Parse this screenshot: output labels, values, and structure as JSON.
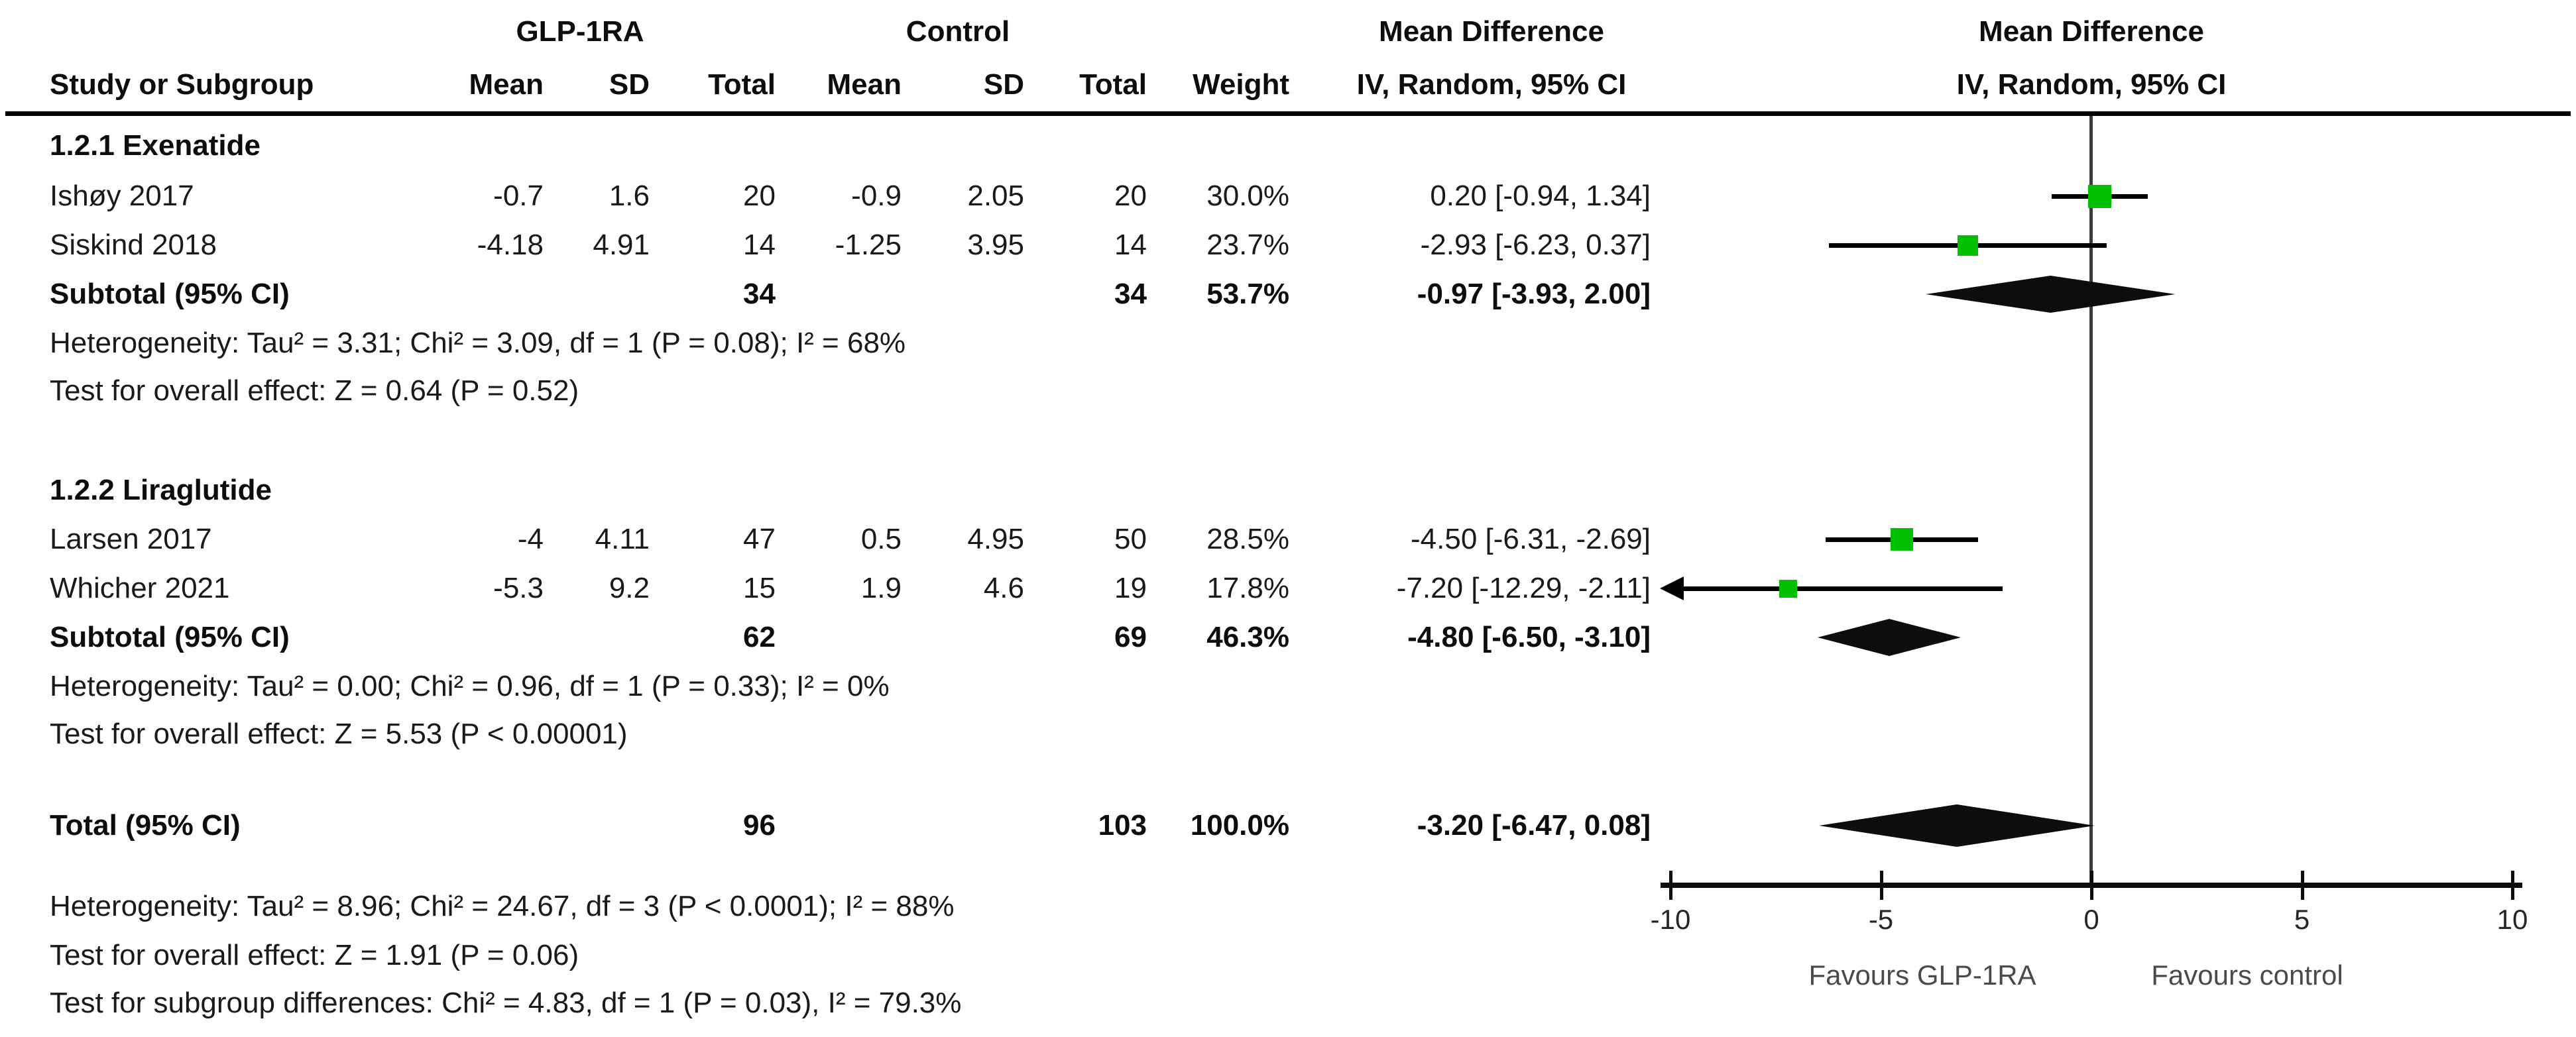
{
  "figure": {
    "group_headers": {
      "glp1ra": "GLP-1RA",
      "control": "Control",
      "md_left": "Mean Difference",
      "md_right": "Mean Difference"
    },
    "column_headers": {
      "study": "Study or Subgroup",
      "mean1": "Mean",
      "sd1": "SD",
      "total1": "Total",
      "mean2": "Mean",
      "sd2": "SD",
      "total2": "Total",
      "weight": "Weight",
      "ci_left": "IV, Random, 95% CI",
      "ci_right": "IV, Random, 95% CI"
    }
  },
  "subgroups": [
    {
      "label": "1.2.1 Exenatide",
      "studies": [
        {
          "name": "Ishøy 2017",
          "mean1": "-0.7",
          "sd1": "1.6",
          "n1": "20",
          "mean2": "-0.9",
          "sd2": "2.05",
          "n2": "20",
          "weight": "30.0%",
          "md_ci": "0.20 [-0.94, 1.34]"
        },
        {
          "name": "Siskind 2018",
          "mean1": "-4.18",
          "sd1": "4.91",
          "n1": "14",
          "mean2": "-1.25",
          "sd2": "3.95",
          "n2": "14",
          "weight": "23.7%",
          "md_ci": "-2.93 [-6.23, 0.37]"
        }
      ],
      "subtotal": {
        "label": "Subtotal (95% CI)",
        "n1": "34",
        "n2": "34",
        "weight": "53.7%",
        "md_ci": "-0.97 [-3.93, 2.00]"
      },
      "heterogeneity": "Heterogeneity: Tau² = 3.31; Chi² = 3.09, df = 1 (P = 0.08); I² = 68%",
      "overall_effect": "Test for overall effect: Z = 0.64 (P = 0.52)"
    },
    {
      "label": "1.2.2 Liraglutide",
      "studies": [
        {
          "name": "Larsen 2017",
          "mean1": "-4",
          "sd1": "4.11",
          "n1": "47",
          "mean2": "0.5",
          "sd2": "4.95",
          "n2": "50",
          "weight": "28.5%",
          "md_ci": "-4.50 [-6.31, -2.69]"
        },
        {
          "name": "Whicher 2021",
          "mean1": "-5.3",
          "sd1": "9.2",
          "n1": "15",
          "mean2": "1.9",
          "sd2": "4.6",
          "n2": "19",
          "weight": "17.8%",
          "md_ci": "-7.20 [-12.29, -2.11]"
        }
      ],
      "subtotal": {
        "label": "Subtotal (95% CI)",
        "n1": "62",
        "n2": "69",
        "weight": "46.3%",
        "md_ci": "-4.80 [-6.50, -3.10]"
      },
      "heterogeneity": "Heterogeneity: Tau² = 0.00; Chi² = 0.96, df = 1 (P = 0.33); I² = 0%",
      "overall_effect": "Test for overall effect: Z = 5.53 (P < 0.00001)"
    }
  ],
  "total": {
    "label": "Total (95% CI)",
    "n1": "96",
    "n2": "103",
    "weight": "100.0%",
    "md_ci": "-3.20 [-6.47, 0.08]",
    "heterogeneity": "Heterogeneity: Tau² = 8.96; Chi² = 24.67, df = 3 (P < 0.0001); I² = 88%",
    "overall_effect": "Test for overall effect: Z = 1.91 (P = 0.06)",
    "subgroup_diff": "Test for subgroup differences: Chi² = 4.83, df = 1 (P = 0.03), I² = 79.3%"
  },
  "plot": {
    "axis_min": -10,
    "axis_max": 10,
    "ticks": [
      {
        "v": -10,
        "label": "-10"
      },
      {
        "v": -5,
        "label": "-5"
      },
      {
        "v": 0,
        "label": "0"
      },
      {
        "v": 5,
        "label": "5"
      },
      {
        "v": 10,
        "label": "10"
      }
    ],
    "favours_left": "Favours GLP-1RA",
    "favours_right": "Favours control",
    "marker_color": "#00BE00",
    "diamond_color": "#0d0d0d",
    "ci_line_color": "#000000",
    "zero_line_color": "#3d3d3d"
  },
  "chart_data": {
    "type": "scatter",
    "variant": "forest-plot (mean difference, inverse-variance random effects)",
    "title": "Mean Difference IV, Random, 95% CI",
    "xlabel": "",
    "xlim": [
      -10,
      10
    ],
    "xticks": [
      -10,
      -5,
      0,
      5,
      10
    ],
    "annotation_left": "Favours GLP-1RA",
    "annotation_right": "Favours control",
    "rows": [
      {
        "label": "Ishøy 2017",
        "kind": "study",
        "md": 0.2,
        "lo": -0.94,
        "hi": 1.34,
        "weight_pct": 30.0
      },
      {
        "label": "Siskind 2018",
        "kind": "study",
        "md": -2.93,
        "lo": -6.23,
        "hi": 0.37,
        "weight_pct": 23.7
      },
      {
        "label": "Subtotal (95% CI)",
        "kind": "subtotal",
        "md": -0.97,
        "lo": -3.93,
        "hi": 2.0,
        "subgroup": "1.2.1 Exenatide"
      },
      {
        "label": "Larsen 2017",
        "kind": "study",
        "md": -4.5,
        "lo": -6.31,
        "hi": -2.69,
        "weight_pct": 28.5
      },
      {
        "label": "Whicher 2021",
        "kind": "study",
        "md": -7.2,
        "lo": -12.29,
        "hi": -2.11,
        "weight_pct": 17.8
      },
      {
        "label": "Subtotal (95% CI)",
        "kind": "subtotal",
        "md": -4.8,
        "lo": -6.5,
        "hi": -3.1,
        "subgroup": "1.2.2 Liraglutide"
      },
      {
        "label": "Total (95% CI)",
        "kind": "total",
        "md": -3.2,
        "lo": -6.47,
        "hi": 0.08
      }
    ]
  }
}
